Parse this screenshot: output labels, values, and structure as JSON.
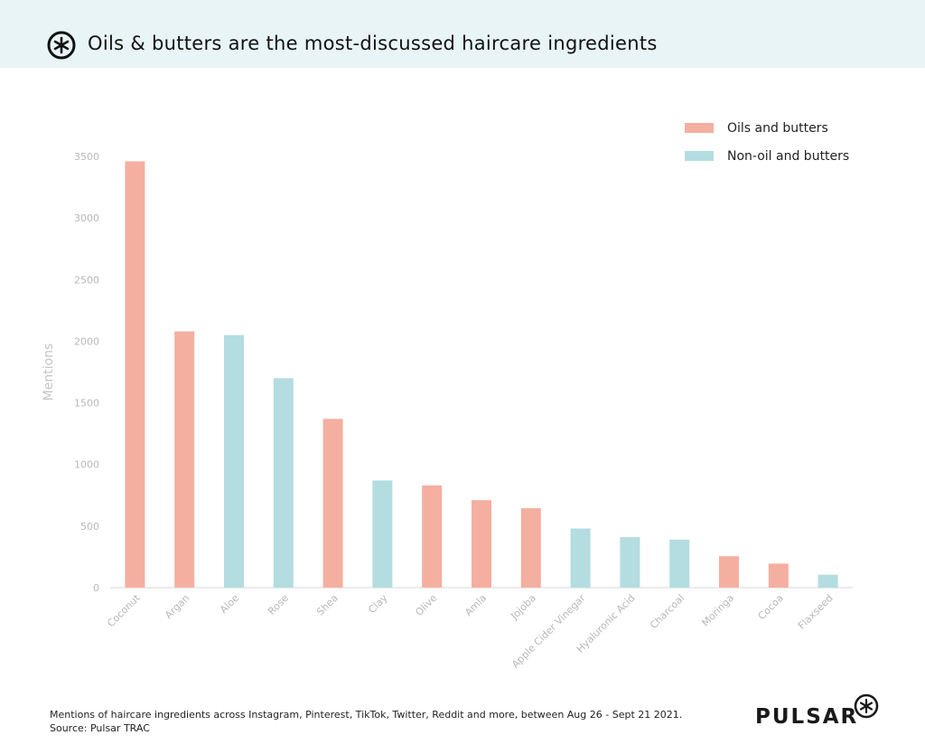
{
  "header": {
    "title": "Oils & butters are the most-discussed haircare ingredients"
  },
  "chart_data": {
    "type": "bar",
    "title": "Oils & butters are the most-discussed haircare ingredients",
    "xlabel": "",
    "ylabel": "Mentions",
    "ylim": [
      0,
      3500
    ],
    "yticks": [
      0,
      500,
      1000,
      1500,
      2000,
      2500,
      3000,
      3500
    ],
    "grid": false,
    "legend_position": "top-right",
    "categories": [
      "Coconut",
      "Argan",
      "Aloe",
      "Rose",
      "Shea",
      "Clay",
      "Olive",
      "Amla",
      "Jojoba",
      "Apple Cider Vinegar",
      "Hyaluronic Acid",
      "Charcoal",
      "Moringa",
      "Cocoa",
      "Flaxseed"
    ],
    "values": [
      3460,
      2080,
      2050,
      1700,
      1370,
      870,
      830,
      710,
      645,
      480,
      410,
      390,
      255,
      195,
      105
    ],
    "groups": [
      "oils",
      "oils",
      "non",
      "non",
      "oils",
      "non",
      "oils",
      "oils",
      "oils",
      "non",
      "non",
      "non",
      "oils",
      "oils",
      "non"
    ],
    "series": [
      {
        "key": "oils",
        "name": "Oils and butters",
        "color": "#f4afa0"
      },
      {
        "key": "non",
        "name": "Non-oil and butters",
        "color": "#b3dde0"
      }
    ]
  },
  "footer": {
    "note": "Mentions of haircare ingredients across Instagram, Pinterest, TikTok, Twitter, Reddit and more, between Aug 26 - Sept 21 2021.",
    "source": "Source: Pulsar TRAC",
    "brand": "PULSAR"
  }
}
